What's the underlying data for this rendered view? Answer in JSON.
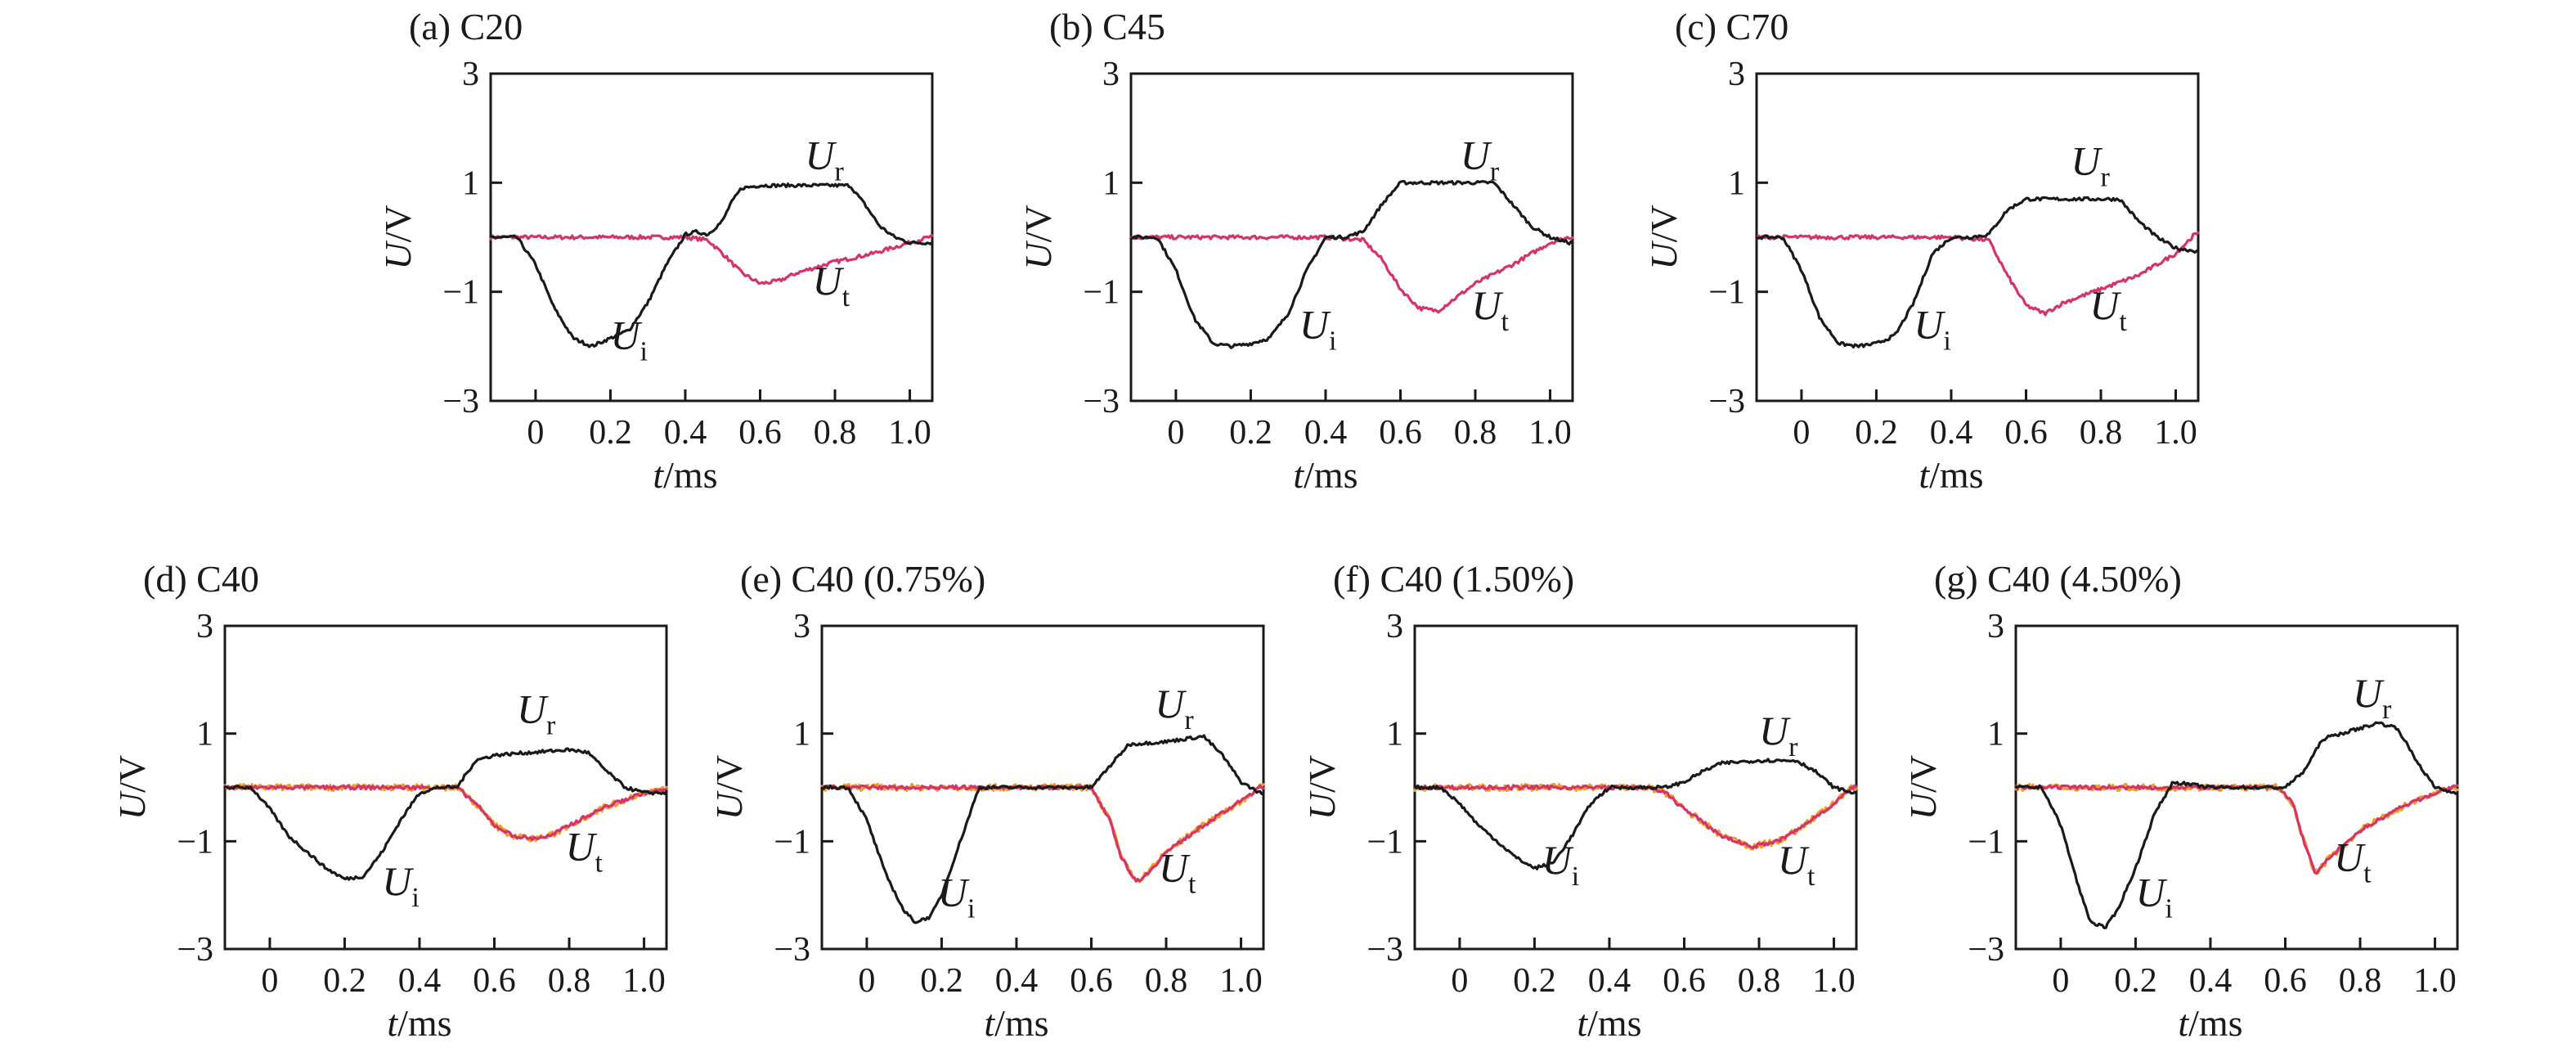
{
  "colors": {
    "incident_reflected": "#1a1a1a",
    "transmitted": "#d6336c",
    "transmitted_noise": "#f0a020",
    "axes": "#1a1a1a",
    "background": "#ffffff"
  },
  "chart_data": [
    {
      "type": "line",
      "title": "(a) C20",
      "xlabel": "t/ms",
      "ylabel": "U/V",
      "xlim": [
        -0.12,
        1.06
      ],
      "ylim": [
        -3,
        3
      ],
      "xticks": [
        0,
        0.2,
        0.4,
        0.6,
        0.8,
        1.0
      ],
      "xtick_labels": [
        "0",
        "0.2",
        "0.4",
        "0.6",
        "0.8",
        "1.0"
      ],
      "yticks": [
        -3,
        -1,
        1,
        3
      ],
      "ytick_labels": [
        "−3",
        "−1",
        "1",
        "3"
      ],
      "annotations": [
        {
          "text": "U",
          "sub": "r",
          "x": 0.72,
          "y": 1.25
        },
        {
          "text": "U",
          "sub": "t",
          "x": 0.74,
          "y": -1.05
        },
        {
          "text": "U",
          "sub": "i",
          "x": 0.2,
          "y": -2.05
        }
      ],
      "series": [
        {
          "role": "incident_reflected",
          "x": [
            -0.12,
            -0.05,
            0,
            0.05,
            0.1,
            0.15,
            0.2,
            0.25,
            0.3,
            0.35,
            0.4,
            0.43,
            0.46,
            0.5,
            0.52,
            0.55,
            0.6,
            0.7,
            0.8,
            0.84,
            0.88,
            0.92,
            0.96,
            1.0,
            1.05
          ],
          "y": [
            0,
            0,
            -0.5,
            -1.3,
            -1.85,
            -2.0,
            -1.85,
            -1.7,
            -1.2,
            -0.5,
            0.05,
            0.1,
            0.05,
            0.3,
            0.6,
            0.9,
            0.95,
            0.95,
            0.95,
            0.95,
            0.6,
            0.2,
            0,
            -0.1,
            -0.1
          ]
        },
        {
          "role": "transmitted",
          "x": [
            -0.12,
            0,
            0.2,
            0.4,
            0.46,
            0.5,
            0.55,
            0.6,
            0.65,
            0.7,
            0.8,
            0.9,
            1.0,
            1.05
          ],
          "y": [
            0,
            0,
            0,
            0,
            -0.05,
            -0.3,
            -0.65,
            -0.85,
            -0.8,
            -0.65,
            -0.45,
            -0.3,
            -0.1,
            0
          ]
        }
      ]
    },
    {
      "type": "line",
      "title": "(b) C45",
      "xlabel": "t/ms",
      "ylabel": "U/V",
      "xlim": [
        -0.12,
        1.06
      ],
      "ylim": [
        -3,
        3
      ],
      "xticks": [
        0,
        0.2,
        0.4,
        0.6,
        0.8,
        1.0
      ],
      "xtick_labels": [
        "0",
        "0.2",
        "0.4",
        "0.6",
        "0.8",
        "1.0"
      ],
      "yticks": [
        -3,
        -1,
        1,
        3
      ],
      "ytick_labels": [
        "−3",
        "−1",
        "1",
        "3"
      ],
      "annotations": [
        {
          "text": "U",
          "sub": "r",
          "x": 0.76,
          "y": 1.25
        },
        {
          "text": "U",
          "sub": "t",
          "x": 0.79,
          "y": -1.5
        },
        {
          "text": "U",
          "sub": "i",
          "x": 0.33,
          "y": -1.85
        }
      ],
      "series": [
        {
          "role": "incident_reflected",
          "x": [
            -0.12,
            -0.05,
            0,
            0.05,
            0.1,
            0.15,
            0.2,
            0.25,
            0.3,
            0.35,
            0.4,
            0.45,
            0.5,
            0.55,
            0.6,
            0.7,
            0.8,
            0.85,
            0.9,
            0.95,
            1.0,
            1.05
          ],
          "y": [
            0,
            0,
            -0.6,
            -1.5,
            -1.95,
            -2.0,
            -1.95,
            -1.85,
            -1.4,
            -0.6,
            0,
            0,
            0.1,
            0.6,
            1.0,
            1.0,
            1.0,
            1.0,
            0.6,
            0.2,
            0,
            -0.1
          ]
        },
        {
          "role": "transmitted",
          "x": [
            -0.12,
            0,
            0.2,
            0.4,
            0.5,
            0.55,
            0.6,
            0.65,
            0.7,
            0.75,
            0.8,
            0.9,
            1.0,
            1.05
          ],
          "y": [
            0,
            0,
            0,
            0,
            -0.05,
            -0.4,
            -0.95,
            -1.3,
            -1.35,
            -1.1,
            -0.85,
            -0.5,
            -0.1,
            0
          ]
        }
      ]
    },
    {
      "type": "line",
      "title": "(c) C70",
      "xlabel": "t/ms",
      "ylabel": "U/V",
      "xlim": [
        -0.12,
        1.06
      ],
      "ylim": [
        -3,
        3
      ],
      "xticks": [
        0,
        0.2,
        0.4,
        0.6,
        0.8,
        1.0
      ],
      "xtick_labels": [
        "0",
        "0.2",
        "0.4",
        "0.6",
        "0.8",
        "1.0"
      ],
      "yticks": [
        -3,
        -1,
        1,
        3
      ],
      "ytick_labels": [
        "−3",
        "−1",
        "1",
        "3"
      ],
      "annotations": [
        {
          "text": "U",
          "sub": "r",
          "x": 0.72,
          "y": 1.15
        },
        {
          "text": "U",
          "sub": "t",
          "x": 0.77,
          "y": -1.5
        },
        {
          "text": "U",
          "sub": "i",
          "x": 0.3,
          "y": -1.85
        }
      ],
      "series": [
        {
          "role": "incident_reflected",
          "x": [
            -0.12,
            -0.05,
            0,
            0.05,
            0.1,
            0.15,
            0.2,
            0.25,
            0.3,
            0.35,
            0.4,
            0.45,
            0.5,
            0.55,
            0.6,
            0.7,
            0.8,
            0.85,
            0.9,
            0.95,
            1.0,
            1.05
          ],
          "y": [
            0,
            0,
            -0.6,
            -1.5,
            -1.95,
            -2.0,
            -1.95,
            -1.8,
            -1.2,
            -0.3,
            0,
            0,
            0.05,
            0.5,
            0.7,
            0.7,
            0.7,
            0.7,
            0.3,
            0,
            -0.2,
            -0.25
          ]
        },
        {
          "role": "transmitted",
          "x": [
            -0.12,
            0,
            0.2,
            0.4,
            0.5,
            0.55,
            0.6,
            0.65,
            0.7,
            0.8,
            0.9,
            1.0,
            1.05
          ],
          "y": [
            0,
            0,
            0,
            0,
            -0.05,
            -0.7,
            -1.25,
            -1.4,
            -1.2,
            -0.95,
            -0.7,
            -0.3,
            0.05
          ]
        }
      ]
    },
    {
      "type": "line",
      "title": "(d) C40",
      "xlabel": "t/ms",
      "ylabel": "U/V",
      "xlim": [
        -0.12,
        1.06
      ],
      "ylim": [
        -3,
        3
      ],
      "xticks": [
        0,
        0.2,
        0.4,
        0.6,
        0.8,
        1.0
      ],
      "xtick_labels": [
        "0",
        "0.2",
        "0.4",
        "0.6",
        "0.8",
        "1.0"
      ],
      "yticks": [
        -3,
        -1,
        1,
        3
      ],
      "ytick_labels": [
        "−3",
        "−1",
        "1",
        "3"
      ],
      "annotations": [
        {
          "text": "U",
          "sub": "r",
          "x": 0.66,
          "y": 1.2
        },
        {
          "text": "U",
          "sub": "t",
          "x": 0.79,
          "y": -1.35
        },
        {
          "text": "U",
          "sub": "i",
          "x": 0.3,
          "y": -2.0
        }
      ],
      "series": [
        {
          "role": "incident_reflected",
          "x": [
            -0.12,
            -0.05,
            0,
            0.05,
            0.1,
            0.15,
            0.2,
            0.25,
            0.3,
            0.35,
            0.4,
            0.45,
            0.5,
            0.55,
            0.6,
            0.7,
            0.8,
            0.85,
            0.9,
            0.95,
            1.0,
            1.05
          ],
          "y": [
            0,
            0,
            -0.4,
            -0.9,
            -1.2,
            -1.5,
            -1.7,
            -1.65,
            -1.2,
            -0.6,
            -0.1,
            0,
            0,
            0.5,
            0.6,
            0.65,
            0.7,
            0.65,
            0.3,
            0,
            -0.1,
            -0.1
          ]
        },
        {
          "role": "transmitted",
          "x": [
            -0.12,
            0,
            0.2,
            0.4,
            0.5,
            0.55,
            0.6,
            0.65,
            0.7,
            0.75,
            0.8,
            0.9,
            1.0,
            1.05
          ],
          "y": [
            0,
            0,
            0,
            0,
            0,
            -0.3,
            -0.7,
            -0.9,
            -0.95,
            -0.9,
            -0.7,
            -0.35,
            -0.1,
            -0.05
          ]
        }
      ]
    },
    {
      "type": "line",
      "title": "(e) C40 (0.75%)",
      "xlabel": "t/ms",
      "ylabel": "U/V",
      "xlim": [
        -0.12,
        1.06
      ],
      "ylim": [
        -3,
        3
      ],
      "xticks": [
        0,
        0.2,
        0.4,
        0.6,
        0.8,
        1.0
      ],
      "xtick_labels": [
        "0",
        "0.2",
        "0.4",
        "0.6",
        "0.8",
        "1.0"
      ],
      "yticks": [
        -3,
        -1,
        1,
        3
      ],
      "ytick_labels": [
        "−3",
        "−1",
        "1",
        "3"
      ],
      "annotations": [
        {
          "text": "U",
          "sub": "r",
          "x": 0.77,
          "y": 1.3
        },
        {
          "text": "U",
          "sub": "t",
          "x": 0.78,
          "y": -1.75
        },
        {
          "text": "U",
          "sub": "i",
          "x": 0.19,
          "y": -2.2
        }
      ],
      "series": [
        {
          "role": "incident_reflected",
          "x": [
            -0.12,
            -0.05,
            0,
            0.05,
            0.1,
            0.13,
            0.17,
            0.2,
            0.25,
            0.3,
            0.4,
            0.5,
            0.55,
            0.6,
            0.65,
            0.7,
            0.8,
            0.9,
            0.95,
            1.0,
            1.05
          ],
          "y": [
            0,
            0,
            -0.6,
            -1.6,
            -2.3,
            -2.5,
            -2.4,
            -2.0,
            -1.0,
            0,
            0,
            0,
            0,
            0,
            0.4,
            0.8,
            0.85,
            0.95,
            0.6,
            0.1,
            -0.1
          ]
        },
        {
          "role": "transmitted",
          "x": [
            -0.12,
            0,
            0.2,
            0.4,
            0.6,
            0.65,
            0.68,
            0.72,
            0.75,
            0.8,
            0.9,
            1.0,
            1.05
          ],
          "y": [
            0,
            0,
            0,
            0,
            0,
            -0.6,
            -1.3,
            -1.75,
            -1.6,
            -1.2,
            -0.7,
            -0.25,
            0
          ]
        }
      ]
    },
    {
      "type": "line",
      "title": "(f) C40 (1.50%)",
      "xlabel": "t/ms",
      "ylabel": "U/V",
      "xlim": [
        -0.12,
        1.06
      ],
      "ylim": [
        -3,
        3
      ],
      "xticks": [
        0,
        0.2,
        0.4,
        0.6,
        0.8,
        1.0
      ],
      "xtick_labels": [
        "0",
        "0.2",
        "0.4",
        "0.6",
        "0.8",
        "1.0"
      ],
      "yticks": [
        -3,
        -1,
        1,
        3
      ],
      "ytick_labels": [
        "−3",
        "−1",
        "1",
        "3"
      ],
      "annotations": [
        {
          "text": "U",
          "sub": "r",
          "x": 0.8,
          "y": 0.8
        },
        {
          "text": "U",
          "sub": "t",
          "x": 0.85,
          "y": -1.6
        },
        {
          "text": "U",
          "sub": "i",
          "x": 0.22,
          "y": -1.6
        }
      ],
      "series": [
        {
          "role": "incident_reflected",
          "x": [
            -0.12,
            -0.05,
            0,
            0.05,
            0.1,
            0.15,
            0.2,
            0.25,
            0.3,
            0.35,
            0.4,
            0.5,
            0.55,
            0.6,
            0.65,
            0.7,
            0.8,
            0.9,
            0.95,
            1.0,
            1.05
          ],
          "y": [
            0,
            0,
            -0.3,
            -0.7,
            -1.0,
            -1.3,
            -1.5,
            -1.4,
            -0.9,
            -0.3,
            0,
            0,
            0,
            0.1,
            0.3,
            0.45,
            0.5,
            0.5,
            0.3,
            0,
            -0.1
          ]
        },
        {
          "role": "transmitted",
          "x": [
            -0.12,
            0,
            0.2,
            0.4,
            0.5,
            0.55,
            0.6,
            0.7,
            0.78,
            0.85,
            0.9,
            1.0,
            1.05
          ],
          "y": [
            0,
            0,
            0,
            0,
            0,
            -0.1,
            -0.4,
            -0.9,
            -1.1,
            -1.0,
            -0.8,
            -0.3,
            0
          ]
        }
      ]
    },
    {
      "type": "line",
      "title": "(g) C40 (4.50%)",
      "xlabel": "t/ms",
      "ylabel": "U/V",
      "xlim": [
        -0.12,
        1.06
      ],
      "ylim": [
        -3,
        3
      ],
      "xticks": [
        0,
        0.2,
        0.4,
        0.6,
        0.8,
        1.0
      ],
      "xtick_labels": [
        "0",
        "0.2",
        "0.4",
        "0.6",
        "0.8",
        "1.0"
      ],
      "yticks": [
        -3,
        -1,
        1,
        3
      ],
      "ytick_labels": [
        "−3",
        "−1",
        "1",
        "3"
      ],
      "annotations": [
        {
          "text": "U",
          "sub": "r",
          "x": 0.78,
          "y": 1.5
        },
        {
          "text": "U",
          "sub": "t",
          "x": 0.73,
          "y": -1.55
        },
        {
          "text": "U",
          "sub": "i",
          "x": 0.2,
          "y": -2.2
        }
      ],
      "series": [
        {
          "role": "incident_reflected",
          "x": [
            -0.12,
            -0.05,
            0,
            0.05,
            0.08,
            0.12,
            0.15,
            0.2,
            0.25,
            0.3,
            0.4,
            0.5,
            0.6,
            0.65,
            0.7,
            0.8,
            0.85,
            0.9,
            0.95,
            1.0,
            1.05
          ],
          "y": [
            0,
            0,
            -0.7,
            -1.9,
            -2.5,
            -2.6,
            -2.3,
            -1.5,
            -0.5,
            0.1,
            0,
            0,
            0,
            0.3,
            0.9,
            1.1,
            1.2,
            1.1,
            0.5,
            0,
            -0.1
          ]
        },
        {
          "role": "transmitted",
          "x": [
            -0.12,
            0,
            0.2,
            0.4,
            0.58,
            0.62,
            0.65,
            0.68,
            0.72,
            0.8,
            0.9,
            1.0,
            1.05
          ],
          "y": [
            0,
            0,
            0,
            0,
            0,
            -0.3,
            -1.0,
            -1.6,
            -1.3,
            -0.8,
            -0.4,
            -0.1,
            0
          ]
        }
      ]
    }
  ]
}
